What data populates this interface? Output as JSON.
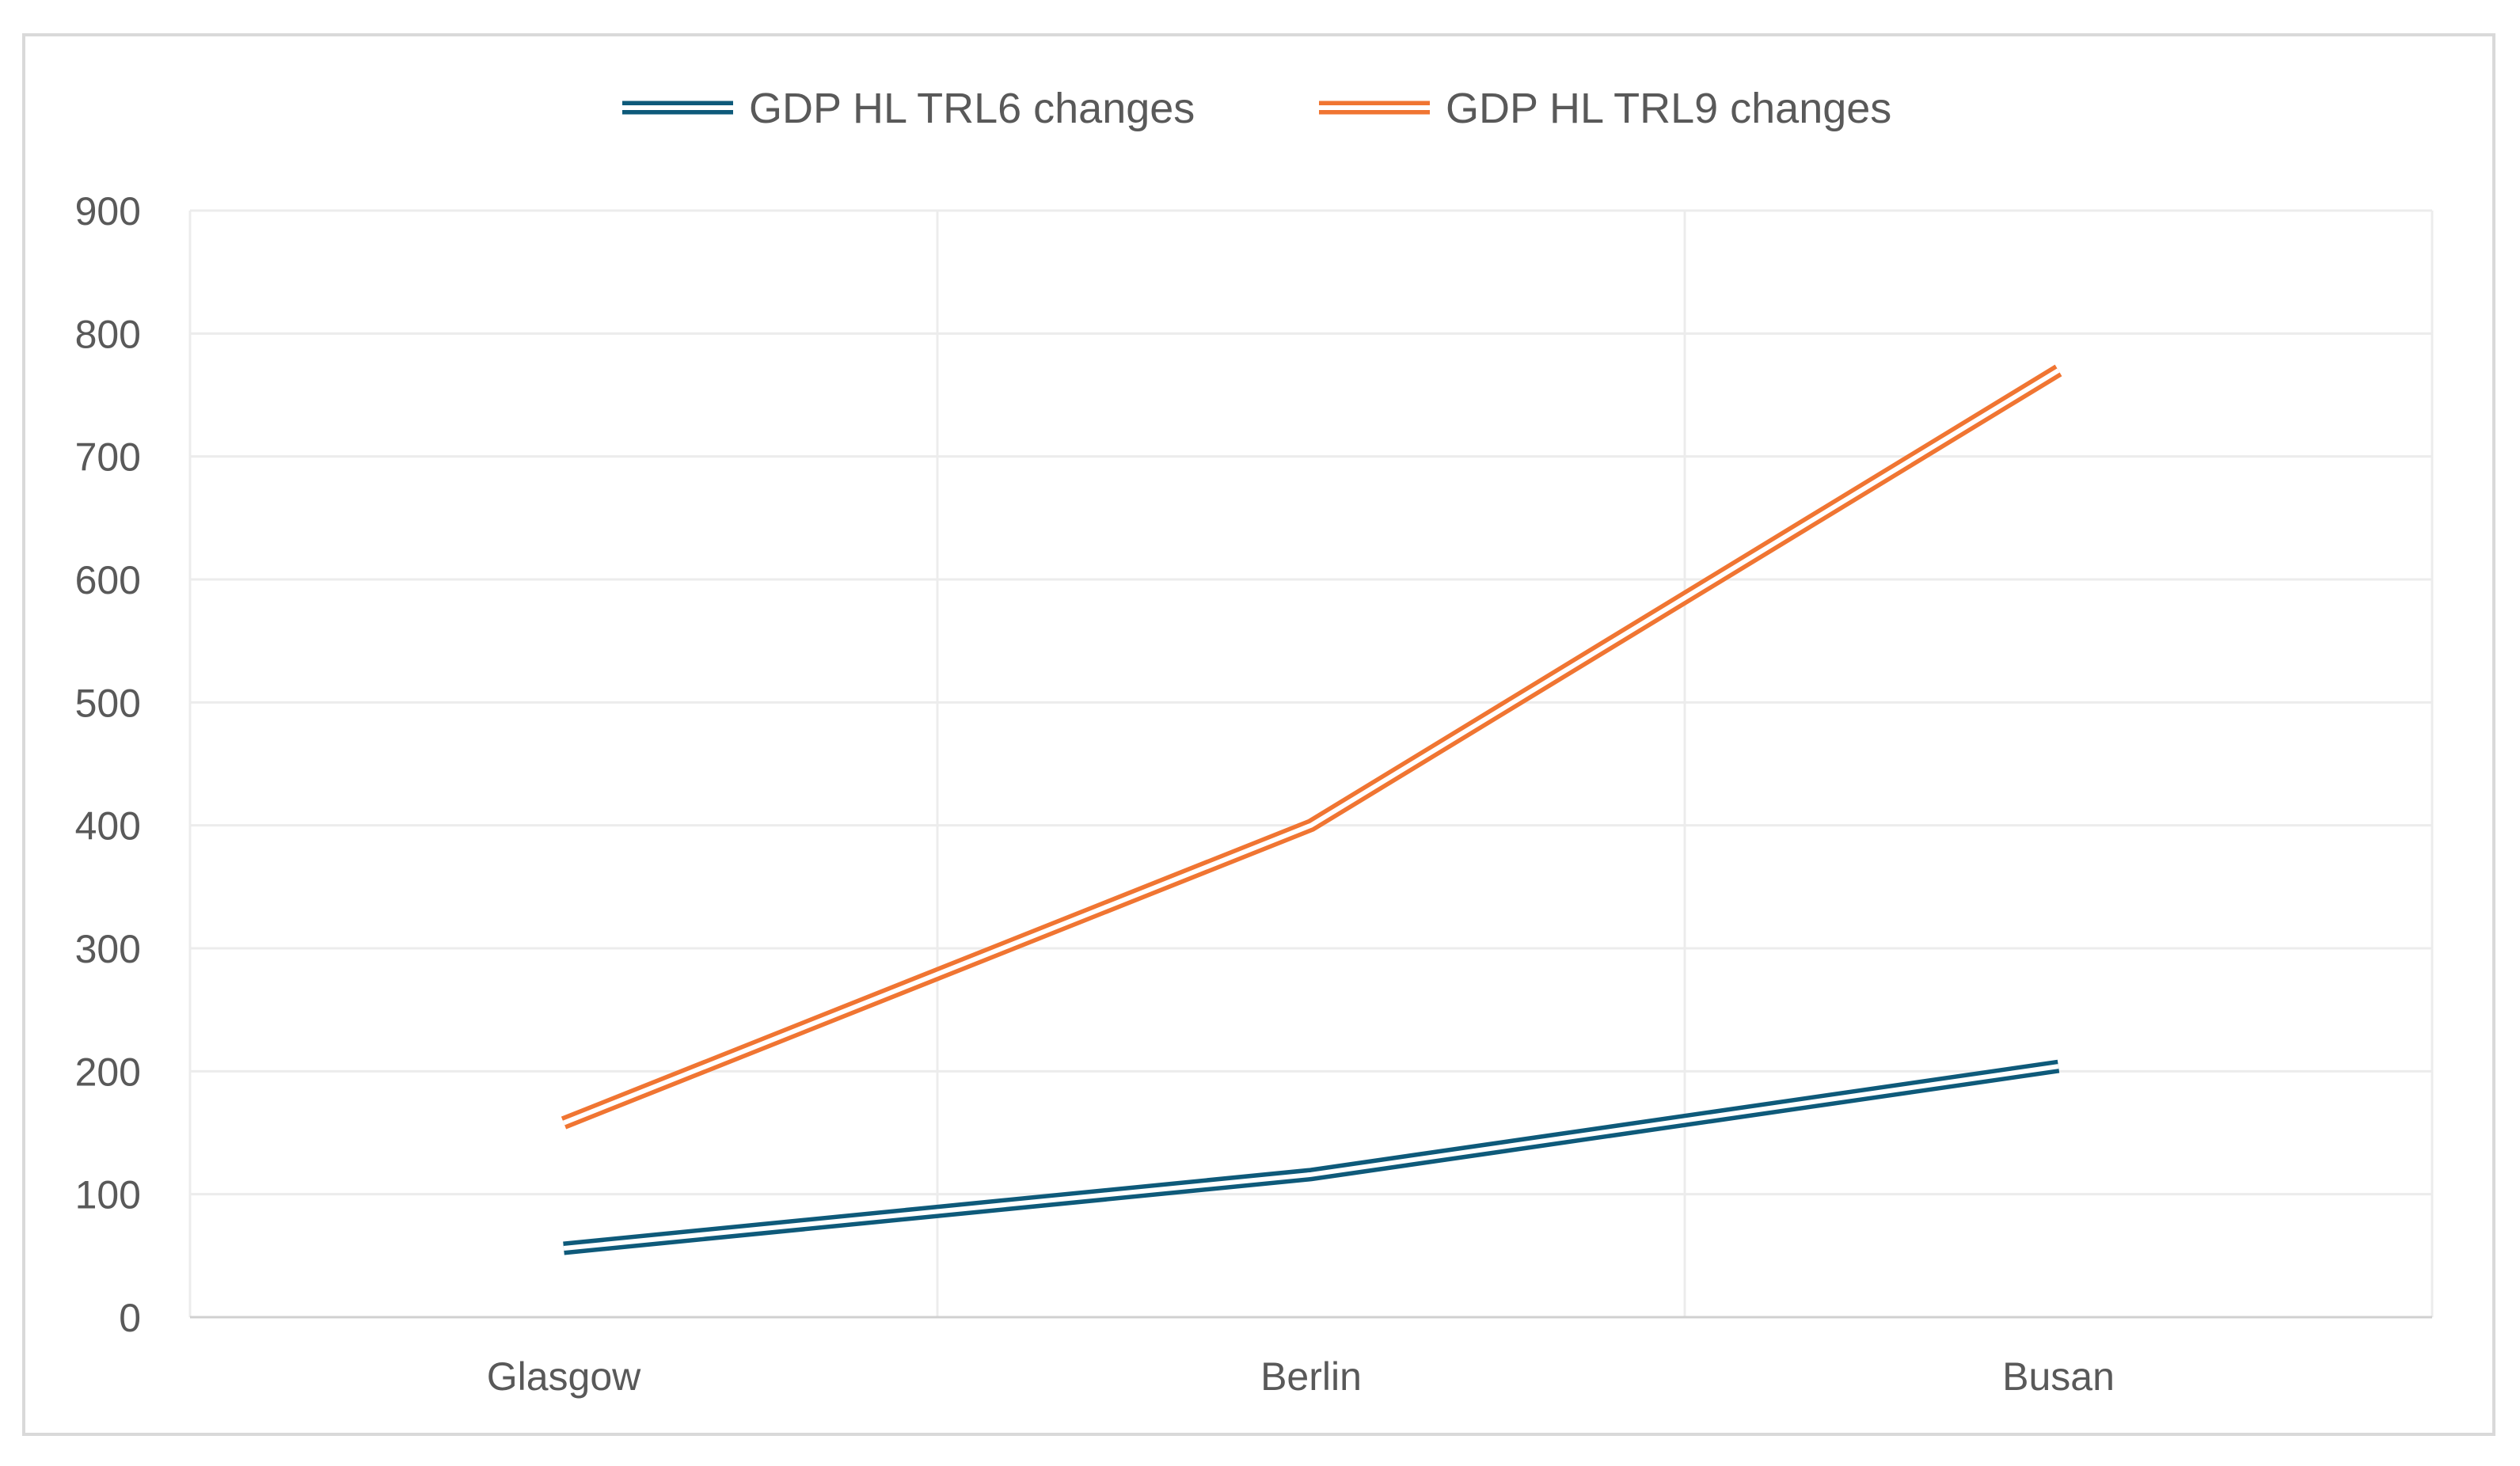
{
  "chart_data": {
    "type": "line",
    "title": "",
    "xlabel": "",
    "ylabel": "",
    "categories": [
      "Glasgow",
      "Berlin",
      "Busan"
    ],
    "ylim": [
      0,
      900
    ],
    "yticks": [
      0,
      100,
      200,
      300,
      400,
      500,
      600,
      700,
      800,
      900
    ],
    "grid": true,
    "legend_position": "top",
    "series": [
      {
        "name": "GDP HL TRL6 changes",
        "color": "#0e5a7a",
        "values": [
          56,
          116,
          204
        ]
      },
      {
        "name": "GDP HL TRL9 changes",
        "color": "#f07532",
        "values": [
          158,
          400,
          770
        ]
      }
    ]
  }
}
